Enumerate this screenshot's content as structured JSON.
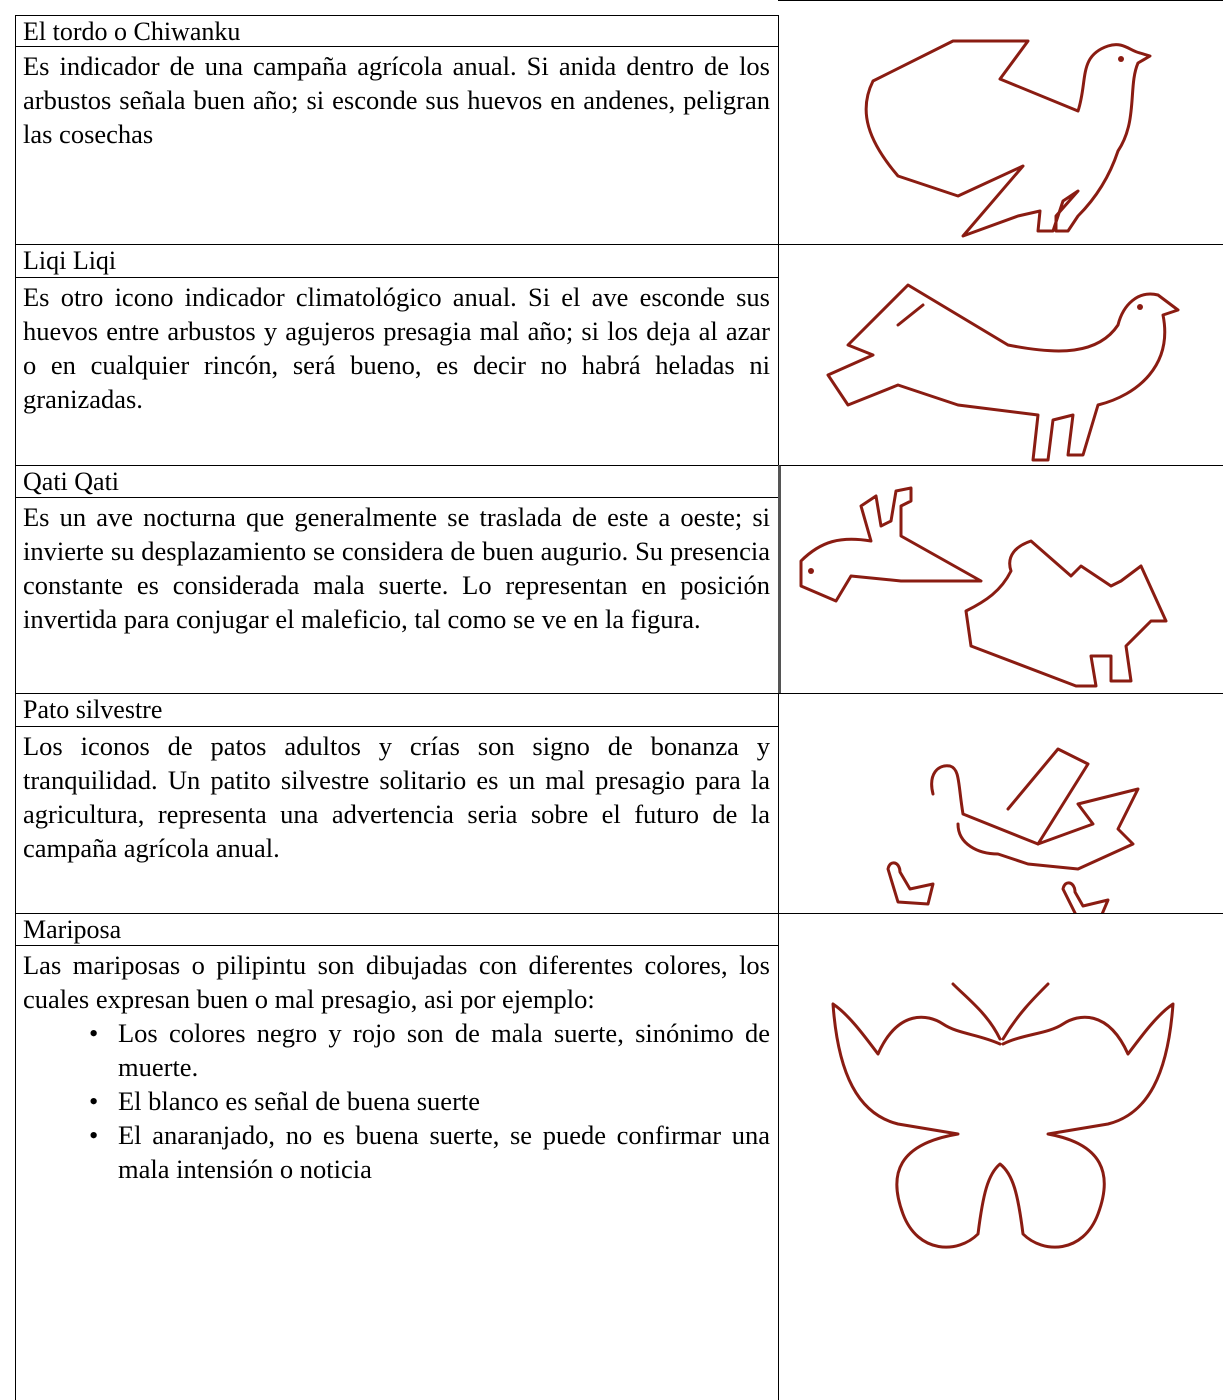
{
  "rows": [
    {
      "title": "El tordo o Chiwanku",
      "text": "Es indicador de una campaña agrícola anual. Si anida dentro de los arbustos señala buen año; si esconde sus huevos en andenes, peligran las cosechas"
    },
    {
      "title": "Liqi Liqi",
      "text": "Es otro icono indicador climatológico anual. Si el ave esconde sus huevos entre arbustos y agujeros presagia mal año; si los deja al azar o en cualquier rincón, será bueno, es decir no habrá heladas ni granizadas."
    },
    {
      "title": "Qati Qati",
      "text": "Es un ave nocturna que generalmente se traslada de este a oeste; si invierte su desplazamiento se considera de buen augurio. Su presencia constante es considerada mala suerte. Lo representan en posición invertida para conjugar el maleficio, tal como se ve en la figura."
    },
    {
      "title": "Pato silvestre",
      "text": "Los iconos de patos adultos y crías son signo de bonanza y tranquilidad. Un patito silvestre solitario es un mal presagio para la agricultura, representa una advertencia seria sobre el futuro de la campaña agrícola anual."
    },
    {
      "title": "Mariposa",
      "text": "Las mariposas o pilipintu son dibujadas con diferentes colores, los cuales expresan buen o mal presagio, asi por ejemplo:",
      "bullets": [
        "Los colores negro y rojo son de mala suerte, sinónimo de muerte.",
        "El blanco es señal de buena suerte",
        "El anaranjado, no es buena suerte, se puede confirmar una mala intensión o noticia"
      ]
    }
  ]
}
